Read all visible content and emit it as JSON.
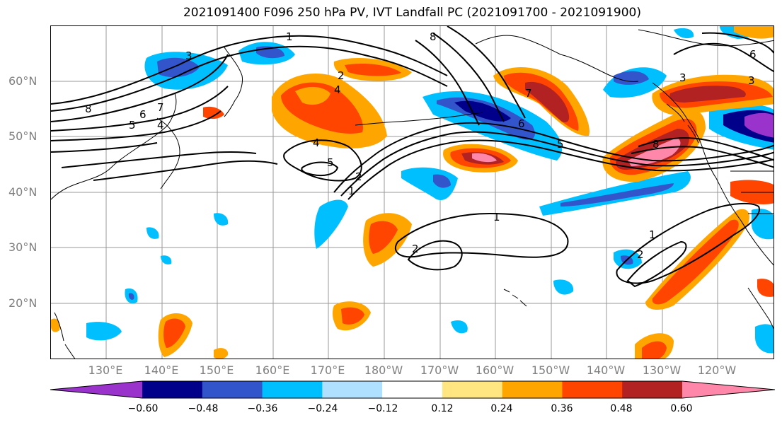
{
  "title": "2021091400 F096 250 hPa PV, IVT Landfall PC (2021091700 - 2021091900)",
  "map": {
    "lat_labels": [
      "60°N",
      "50°N",
      "40°N",
      "30°N",
      "20°N"
    ],
    "lon_labels": [
      "130°E",
      "140°E",
      "150°E",
      "160°E",
      "170°E",
      "180°W",
      "170°W",
      "160°W",
      "150°W",
      "140°W",
      "130°W",
      "120°W"
    ],
    "contour_labels": [
      "1",
      "1",
      "1",
      "1",
      "2",
      "2",
      "2",
      "2",
      "3",
      "3",
      "3",
      "4",
      "4",
      "4",
      "5",
      "5",
      "5",
      "6",
      "6",
      "6",
      "7",
      "7",
      "8",
      "8",
      "8"
    ]
  },
  "colorbar": {
    "colors": [
      "#9933cc",
      "#00008b",
      "#3355cc",
      "#00bfff",
      "#b0e0ff",
      "#ffffff",
      "#ffe680",
      "#ffa500",
      "#ff4500",
      "#b22222",
      "#ff88aa"
    ],
    "tick_labels": [
      "−0.60",
      "−0.48",
      "−0.36",
      "−0.24",
      "−0.12",
      "0.12",
      "0.24",
      "0.36",
      "0.48",
      "0.60"
    ]
  }
}
